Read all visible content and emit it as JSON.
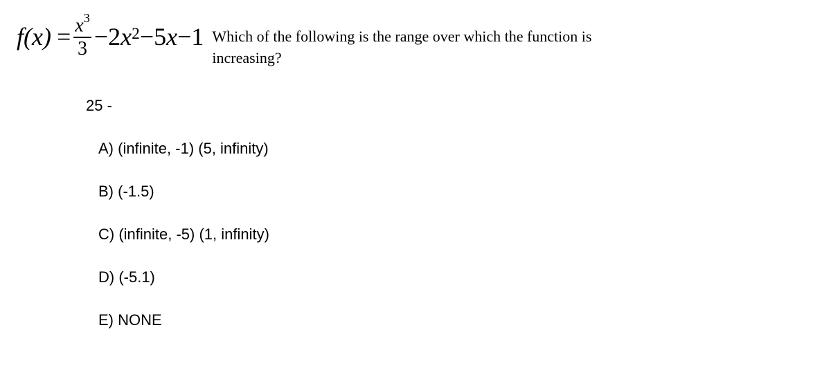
{
  "equation": {
    "fx": "f(x)",
    "equals": " = ",
    "numerator_base": "x",
    "numerator_exp": "3",
    "denominator": "3",
    "minus1": " − ",
    "coef2": "2",
    "x2_base": "x",
    "x2_exp": "2",
    "minus2": " − ",
    "coef5": "5",
    "x1": "x",
    "minus3": " − ",
    "const1": "1"
  },
  "question": "Which of the following is the range over which the function is increasing?",
  "question_number": "25 -",
  "options": {
    "a": "A) (infinite, -1) (5, infinity)",
    "b": "B) (-1.5)",
    "c": "C) (infinite, -5) (1, infinity)",
    "d": "D) (-5.1)",
    "e": "E) NONE"
  },
  "colors": {
    "background": "#ffffff",
    "text": "#000000"
  },
  "typography": {
    "equation_fontsize": 36,
    "question_fontsize": 22,
    "option_fontsize": 22
  }
}
